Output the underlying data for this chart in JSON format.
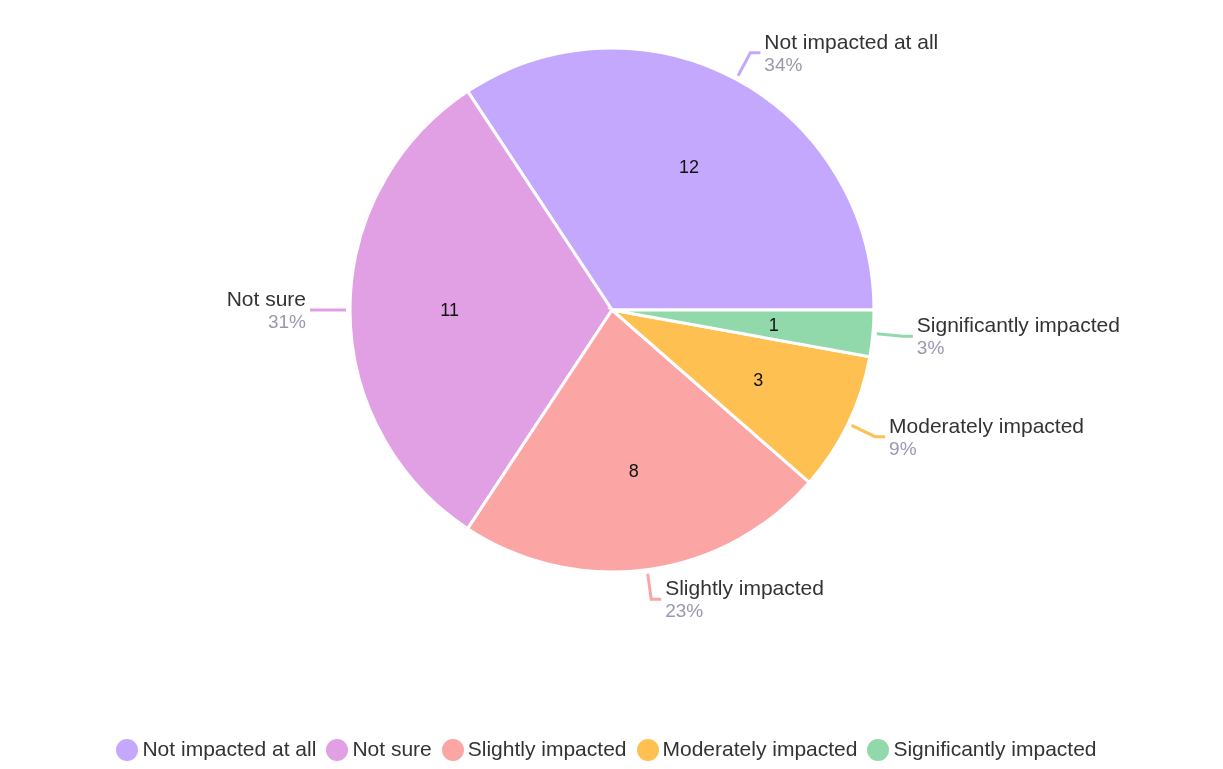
{
  "chart_data": {
    "type": "pie",
    "categories": [
      "Not impacted at all",
      "Not sure",
      "Slightly impacted",
      "Moderately impacted",
      "Significantly impacted"
    ],
    "values": [
      12,
      11,
      8,
      3,
      1
    ],
    "colors": [
      "#c4a8fe",
      "#e19fe4",
      "#fba5a4",
      "#fec151",
      "#91d8aa"
    ],
    "annotations": [
      "34%",
      "31%",
      "23%",
      "9%",
      "3%"
    ],
    "data_labels": true,
    "legend": "bottom"
  }
}
